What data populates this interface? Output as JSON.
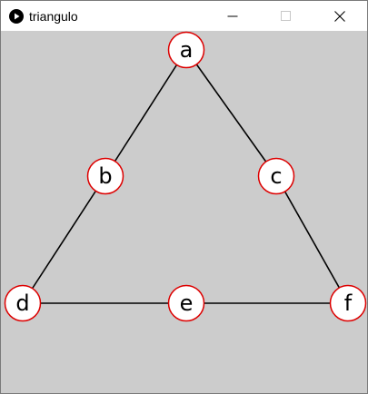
{
  "window": {
    "title": "triangulo",
    "controls": {
      "minimize": "minimize",
      "maximize": "maximize",
      "close": "close"
    }
  },
  "graph": {
    "node_fill": "#ffffff",
    "node_stroke": "#dd0000",
    "edge_color": "#000000",
    "background": "#cccccc",
    "nodes": [
      {
        "id": "a",
        "label": "a"
      },
      {
        "id": "b",
        "label": "b"
      },
      {
        "id": "c",
        "label": "c"
      },
      {
        "id": "d",
        "label": "d"
      },
      {
        "id": "e",
        "label": "e"
      },
      {
        "id": "f",
        "label": "f"
      }
    ],
    "edges": [
      {
        "from": "a",
        "to": "b"
      },
      {
        "from": "b",
        "to": "d"
      },
      {
        "from": "a",
        "to": "c"
      },
      {
        "from": "c",
        "to": "f"
      },
      {
        "from": "d",
        "to": "e"
      },
      {
        "from": "e",
        "to": "f"
      }
    ]
  }
}
